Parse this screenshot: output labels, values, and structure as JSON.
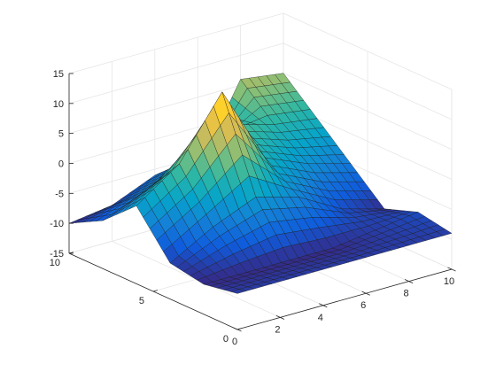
{
  "chart_data": {
    "type": "surface",
    "title": "",
    "xlabel": "",
    "ylabel": "",
    "zlabel": "",
    "xlim": [
      0,
      10
    ],
    "ylim": [
      0,
      10
    ],
    "zlim": [
      -15,
      15
    ],
    "x_ticks": [
      0,
      2,
      4,
      6,
      8,
      10
    ],
    "y_ticks": [
      0,
      5,
      10
    ],
    "z_ticks": [
      -15,
      -10,
      -5,
      0,
      5,
      10,
      15
    ],
    "grid": true,
    "colormap": "parula",
    "colors": [
      "#352a87",
      "#0f5cdd",
      "#1481d6",
      "#06a4ca",
      "#2eb7a4",
      "#87bf77",
      "#d1bb59",
      "#fec832",
      "#f9fb0e"
    ],
    "x": [
      0,
      2,
      4,
      6,
      8,
      10
    ],
    "y": [
      10,
      8,
      6,
      4,
      2,
      0
    ],
    "z": [
      [
        -10,
        -9,
        -6,
        -7,
        6,
        5
      ],
      [
        -7,
        -4,
        -1,
        3,
        1,
        0
      ],
      [
        -2,
        3,
        13,
        0,
        -3,
        -5
      ],
      [
        -9,
        -5,
        -2,
        -4,
        -8,
        -10
      ],
      [
        -10,
        -10,
        -10,
        -10,
        -9,
        -8
      ],
      [
        -9,
        -9,
        -9,
        -9,
        -9,
        -9
      ]
    ],
    "subdivisions": 5
  }
}
